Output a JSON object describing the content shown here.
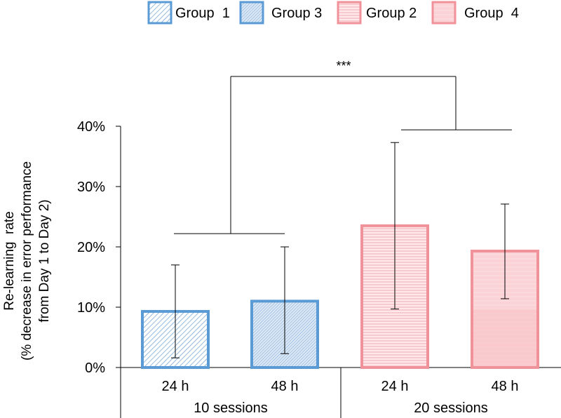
{
  "chart_data": {
    "type": "bar",
    "ylabel_lines": [
      "Re-learning  rate",
      "(% decrease in error performance",
      "from Day 1 to Day 2)"
    ],
    "ylim": [
      0,
      40
    ],
    "yticks": [
      0,
      10,
      20,
      30,
      40
    ],
    "ytick_labels": [
      "0%",
      "10%",
      "20%",
      "30%",
      "40%"
    ],
    "categories": [
      "24 h",
      "48 h",
      "24 h",
      "48 h"
    ],
    "groups": [
      "10 sessions",
      "20 sessions"
    ],
    "legend": [
      {
        "name": "Group  1",
        "color": "#5b9bd5",
        "pattern": "diag"
      },
      {
        "name": "Group 3",
        "color": "#5b9bd5",
        "pattern": "fine"
      },
      {
        "name": "Group 2",
        "color": "#f0929a",
        "pattern": "horiz"
      },
      {
        "name": "Group  4",
        "color": "#f0929a",
        "pattern": "light"
      }
    ],
    "series": [
      {
        "name": "Group  1",
        "category": "24 h",
        "group": "10 sessions",
        "value": 9.3,
        "err_low": 1.6,
        "err_high": 17.0
      },
      {
        "name": "Group 3",
        "category": "48 h",
        "group": "10 sessions",
        "value": 11.0,
        "err_low": 2.3,
        "err_high": 20.0
      },
      {
        "name": "Group 2",
        "category": "24 h",
        "group": "20 sessions",
        "value": 23.5,
        "err_low": 9.7,
        "err_high": 37.3
      },
      {
        "name": "Group  4",
        "category": "48 h",
        "group": "20 sessions",
        "value": 19.3,
        "err_low": 11.4,
        "err_high": 27.1
      }
    ],
    "significance": {
      "label": "***",
      "left_level": 22.2,
      "right_level": 39.4
    }
  }
}
